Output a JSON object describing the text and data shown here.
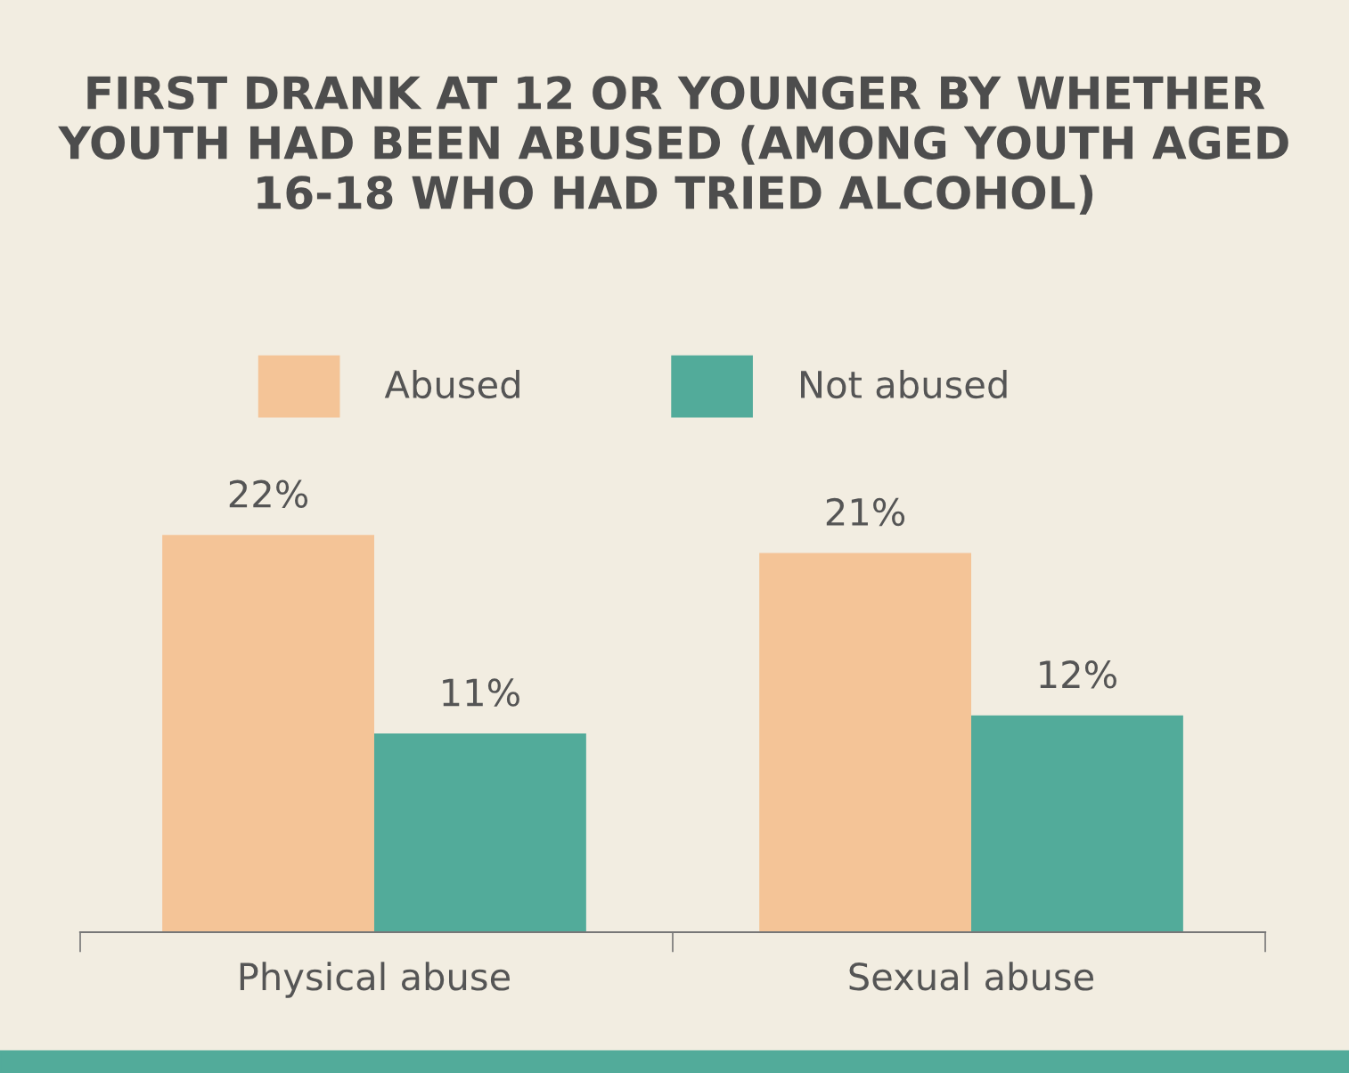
{
  "chart_data": {
    "type": "bar",
    "title": "FIRST DRANK AT 12 OR YOUNGER BY WHETHER YOUTH HAD BEEN ABUSED (AMONG YOUTH AGED 16-18 WHO HAD TRIED ALCOHOL)",
    "categories": [
      "Physical abuse",
      "Sexual abuse"
    ],
    "series": [
      {
        "name": "Abused",
        "color": "#f4c497",
        "values": [
          22,
          21
        ],
        "value_labels": [
          "22%",
          "21%"
        ]
      },
      {
        "name": "Not abused",
        "color": "#52ab9a",
        "values": [
          11,
          12
        ],
        "value_labels": [
          "11%",
          "12%"
        ]
      }
    ],
    "legend": "top",
    "grid": false
  }
}
